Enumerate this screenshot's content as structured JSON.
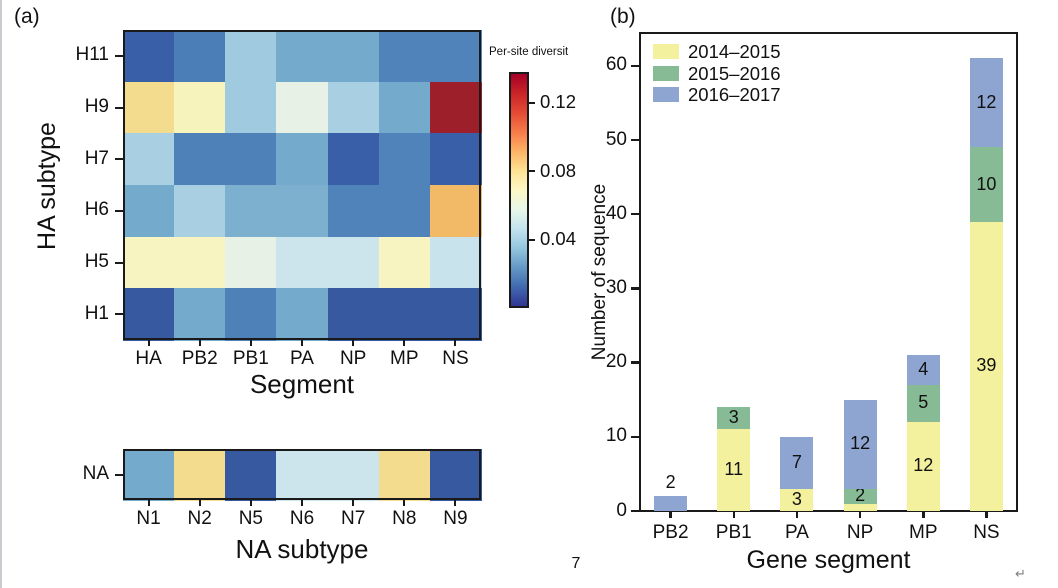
{
  "panel_a": {
    "label": "(a)"
  },
  "panel_b": {
    "label": "(b)"
  },
  "page_number": "7",
  "paragraph_mark": "↵",
  "chart_data": [
    {
      "id": "ha_segment_heatmap",
      "type": "heatmap",
      "ylabel": "HA subtype",
      "xlabel": "Segment",
      "rows": [
        "H11",
        "H9",
        "H7",
        "H6",
        "H5",
        "H1"
      ],
      "columns": [
        "HA",
        "PB2",
        "PB1",
        "PA",
        "NP",
        "MP",
        "NS"
      ],
      "colorbar": {
        "title": "Per-site diversit",
        "tick_values": [
          0.12,
          0.08,
          0.04
        ],
        "tick_labels": [
          "0.12",
          "0.08",
          "0.04"
        ],
        "range_top_to_bottom": [
          0.138,
          0.0
        ],
        "gradient_top_to_bottom": [
          "#A50026",
          "#CA2427",
          "#E34A33",
          "#F67B49",
          "#FDB366",
          "#FEE293",
          "#FDF7C5",
          "#E8F6E8",
          "#C3E3EE",
          "#93C6DE",
          "#6499C6",
          "#416AAF",
          "#313695"
        ]
      },
      "cell_colors": [
        [
          "#3A5FA9",
          "#4B7DB6",
          "#9FCADF",
          "#74AACB",
          "#74AACB",
          "#5083BA",
          "#5083BA"
        ],
        [
          "#F4DC8E",
          "#F6F3BC",
          "#9FCADF",
          "#E7F1E6",
          "#A8D0E2",
          "#74AACB",
          "#9C1F2A"
        ],
        [
          "#A8D0E2",
          "#4E81B8",
          "#4E81B8",
          "#74AACB",
          "#3A5FA9",
          "#5083BA",
          "#3A5FA9"
        ],
        [
          "#74AACB",
          "#A8D0E2",
          "#7CB0CE",
          "#7CB0CE",
          "#5083BA",
          "#5083BA",
          "#F2B966"
        ],
        [
          "#F7F4C2",
          "#F7F4C2",
          "#E7F1E6",
          "#CCE5ED",
          "#CCE5ED",
          "#F7F4C2",
          "#C9E3EC"
        ],
        [
          "#37599F",
          "#74AACB",
          "#4E81B8",
          "#74AACB",
          "#37599F",
          "#37599F",
          "#37599F"
        ]
      ],
      "values_estimated_from_colorbar": [
        [
          0.014,
          0.024,
          0.04,
          0.033,
          0.033,
          0.026,
          0.026
        ],
        [
          0.08,
          0.066,
          0.04,
          0.056,
          0.043,
          0.033,
          0.131
        ],
        [
          0.043,
          0.024,
          0.024,
          0.033,
          0.014,
          0.026,
          0.014
        ],
        [
          0.033,
          0.043,
          0.035,
          0.035,
          0.026,
          0.026,
          0.094
        ],
        [
          0.065,
          0.065,
          0.056,
          0.05,
          0.05,
          0.065,
          0.05
        ],
        [
          0.01,
          0.033,
          0.024,
          0.033,
          0.01,
          0.01,
          0.01
        ]
      ]
    },
    {
      "id": "na_subtype_heatmap",
      "type": "heatmap",
      "xlabel": "NA subtype",
      "rows": [
        "NA"
      ],
      "columns": [
        "N1",
        "N2",
        "N5",
        "N6",
        "N7",
        "N8",
        "N9"
      ],
      "cell_colors": [
        [
          "#74AACB",
          "#F4DC8E",
          "#37599F",
          "#CCE5ED",
          "#CCE5ED",
          "#F4DC8E",
          "#37599F"
        ]
      ],
      "values_estimated_from_colorbar": [
        [
          0.033,
          0.08,
          0.01,
          0.05,
          0.05,
          0.08,
          0.01
        ]
      ]
    },
    {
      "id": "sequence_counts",
      "type": "bar",
      "stacked": true,
      "xlabel": "Gene segment",
      "ylabel": "Number of sequence",
      "categories": [
        "PB2",
        "PB1",
        "PA",
        "NP",
        "MP",
        "NS"
      ],
      "series": [
        {
          "name": "2014–2015",
          "color": "#F3F09E",
          "values": [
            0,
            11,
            3,
            1,
            12,
            39
          ]
        },
        {
          "name": "2015–2016",
          "color": "#86BB96",
          "values": [
            0,
            3,
            0,
            2,
            5,
            10
          ]
        },
        {
          "name": "2016–2017",
          "color": "#8FA5D1",
          "values": [
            2,
            0,
            7,
            12,
            4,
            12
          ]
        }
      ],
      "segment_labels": [
        [
          "",
          "",
          ""
        ],
        [
          "11",
          "3",
          ""
        ],
        [
          "3",
          "",
          "7"
        ],
        [
          "",
          "2",
          "12"
        ],
        [
          "12",
          "5",
          "4"
        ],
        [
          "39",
          "10",
          "12"
        ]
      ],
      "labels_above_bar": [
        "2",
        "",
        "",
        "",
        "",
        ""
      ],
      "bar_totals": [
        2,
        14,
        10,
        15,
        21,
        61
      ],
      "y_ticks": [
        0,
        10,
        20,
        30,
        40,
        50,
        60
      ],
      "ylim": [
        0,
        64.5
      ],
      "grid": false,
      "legend_position": "top-left"
    }
  ]
}
